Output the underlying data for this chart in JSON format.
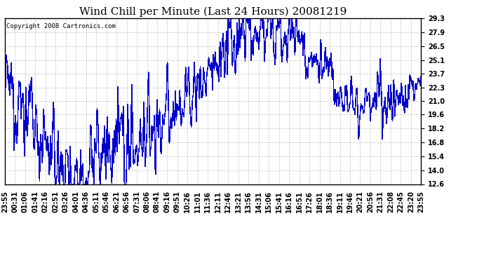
{
  "title": "Wind Chill per Minute (Last 24 Hours) 20081219",
  "copyright": "Copyright 2008 Cartronics.com",
  "yticks": [
    12.6,
    14.0,
    15.4,
    16.8,
    18.2,
    19.6,
    21.0,
    22.3,
    23.7,
    25.1,
    26.5,
    27.9,
    29.3
  ],
  "ylim": [
    12.6,
    29.3
  ],
  "line_color": "#0000cc",
  "bg_color": "#ffffff",
  "plot_bg_color": "#ffffff",
  "grid_color": "#aaaaaa",
  "title_fontsize": 11,
  "copyright_fontsize": 6.5,
  "tick_fontsize": 7,
  "n_points": 1440,
  "xtick_labels": [
    "23:55",
    "00:31",
    "01:06",
    "01:41",
    "02:16",
    "02:51",
    "03:26",
    "04:01",
    "04:36",
    "05:11",
    "05:46",
    "06:21",
    "06:56",
    "07:31",
    "08:06",
    "08:41",
    "09:16",
    "09:51",
    "10:26",
    "11:01",
    "11:36",
    "12:11",
    "12:46",
    "13:21",
    "13:56",
    "14:31",
    "15:06",
    "15:41",
    "16:16",
    "16:51",
    "17:26",
    "18:01",
    "18:36",
    "19:11",
    "19:46",
    "20:21",
    "20:56",
    "21:31",
    "22:08",
    "22:45",
    "23:20",
    "23:55"
  ]
}
